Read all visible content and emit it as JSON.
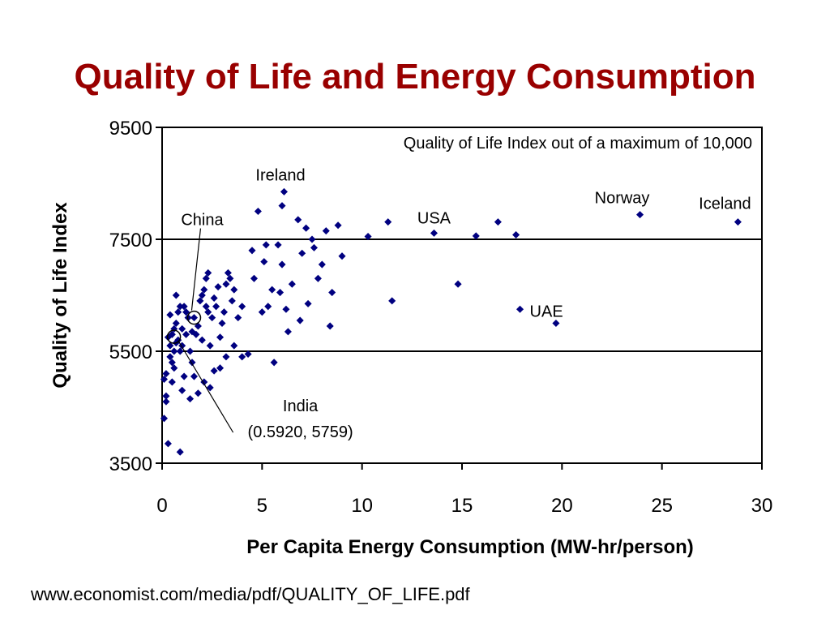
{
  "title": "Quality of Life and Energy Consumption",
  "source": "www.economist.com/media/pdf/QUALITY_OF_LIFE.pdf",
  "chart_data": {
    "type": "scatter",
    "xlabel": "Per Capita Energy Consumption (MW-hr/person)",
    "ylabel": "Quality of Life Index",
    "xlim": [
      0,
      30
    ],
    "ylim": [
      3500,
      9500
    ],
    "xticks": [
      "0",
      "5",
      "10",
      "15",
      "20",
      "25",
      "30"
    ],
    "yticks": [
      "3500",
      "5500",
      "7500",
      "9500"
    ],
    "grid": "horizontal lines at 5500 and 7500",
    "colors": {
      "marker": "#000080",
      "title": "#990000"
    },
    "note": "Quality of Life Index out of a maximum of 10,000",
    "annotations": [
      {
        "label": "Ireland",
        "x": 6.0,
        "y": 8350
      },
      {
        "label": "China",
        "x": 1.6,
        "y": 6100,
        "circled": true
      },
      {
        "label": "USA",
        "x": 13.6,
        "y": 7610
      },
      {
        "label": "Norway",
        "x": 23.9,
        "y": 7940
      },
      {
        "label": "Iceland",
        "x": 28.8,
        "y": 7810
      },
      {
        "label": "UAE",
        "x": 17.9,
        "y": 6200
      },
      {
        "label": "India",
        "sublabel": "(0.5920, 5759)",
        "x": 0.592,
        "y": 5759,
        "circled": true
      }
    ],
    "points": [
      [
        0.1,
        5000
      ],
      [
        0.1,
        4300
      ],
      [
        0.2,
        4600
      ],
      [
        0.2,
        4700
      ],
      [
        0.2,
        5100
      ],
      [
        0.3,
        5750
      ],
      [
        0.4,
        5600
      ],
      [
        0.4,
        5400
      ],
      [
        0.5,
        5800
      ],
      [
        0.5,
        5300
      ],
      [
        0.6,
        5900
      ],
      [
        0.6,
        5500
      ],
      [
        0.6,
        5200
      ],
      [
        0.7,
        6000
      ],
      [
        0.7,
        6500
      ],
      [
        0.7,
        5650
      ],
      [
        0.8,
        6200
      ],
      [
        0.8,
        5700
      ],
      [
        0.9,
        5500
      ],
      [
        0.9,
        6300
      ],
      [
        1.0,
        5900
      ],
      [
        1.0,
        5600
      ],
      [
        1.0,
        4800
      ],
      [
        1.1,
        6300
      ],
      [
        1.2,
        6200
      ],
      [
        1.2,
        5800
      ],
      [
        1.3,
        6100
      ],
      [
        1.4,
        5500
      ],
      [
        1.5,
        5850
      ],
      [
        1.5,
        5300
      ],
      [
        1.6,
        6100
      ],
      [
        1.7,
        5800
      ],
      [
        1.8,
        5950
      ],
      [
        1.9,
        6400
      ],
      [
        2.0,
        6500
      ],
      [
        2.0,
        5700
      ],
      [
        2.1,
        6600
      ],
      [
        2.2,
        6800
      ],
      [
        2.2,
        6300
      ],
      [
        2.3,
        6900
      ],
      [
        2.3,
        6200
      ],
      [
        2.4,
        5600
      ],
      [
        2.5,
        6100
      ],
      [
        2.6,
        6450
      ],
      [
        2.7,
        6300
      ],
      [
        2.8,
        6650
      ],
      [
        2.9,
        5750
      ],
      [
        3.0,
        6000
      ],
      [
        3.1,
        6200
      ],
      [
        3.2,
        6700
      ],
      [
        3.3,
        6900
      ],
      [
        3.4,
        6800
      ],
      [
        3.5,
        6400
      ],
      [
        3.6,
        5600
      ],
      [
        3.8,
        6100
      ],
      [
        4.0,
        5400
      ],
      [
        4.0,
        6300
      ],
      [
        4.3,
        5450
      ],
      [
        4.5,
        7300
      ],
      [
        4.8,
        8000
      ],
      [
        5.0,
        6200
      ],
      [
        5.1,
        7100
      ],
      [
        5.2,
        7400
      ],
      [
        5.3,
        6300
      ],
      [
        5.5,
        6600
      ],
      [
        5.6,
        5300
      ],
      [
        5.8,
        7400
      ],
      [
        6.0,
        7050
      ],
      [
        6.0,
        8100
      ],
      [
        6.1,
        8350
      ],
      [
        6.2,
        6250
      ],
      [
        6.3,
        5850
      ],
      [
        6.5,
        6700
      ],
      [
        6.8,
        7850
      ],
      [
        7.0,
        7250
      ],
      [
        7.2,
        7700
      ],
      [
        7.5,
        7500
      ],
      [
        7.6,
        7350
      ],
      [
        7.8,
        6800
      ],
      [
        8.0,
        7050
      ],
      [
        8.2,
        7650
      ],
      [
        8.4,
        5950
      ],
      [
        8.5,
        6550
      ],
      [
        8.8,
        7750
      ],
      [
        9.0,
        7200
      ],
      [
        10.3,
        7550
      ],
      [
        11.3,
        7810
      ],
      [
        11.5,
        6400
      ],
      [
        13.6,
        7610
      ],
      [
        14.8,
        6700
      ],
      [
        15.7,
        7560
      ],
      [
        16.8,
        7810
      ],
      [
        17.7,
        7580
      ],
      [
        17.9,
        6250
      ],
      [
        19.7,
        6000
      ],
      [
        23.9,
        7940
      ],
      [
        28.8,
        7810
      ],
      [
        3.2,
        5400
      ],
      [
        2.9,
        5200
      ],
      [
        2.4,
        4850
      ],
      [
        1.8,
        4750
      ],
      [
        1.4,
        4650
      ],
      [
        0.9,
        3700
      ],
      [
        0.3,
        3850
      ],
      [
        0.5,
        4950
      ],
      [
        1.1,
        5050
      ],
      [
        2.1,
        4950
      ],
      [
        3.6,
        6600
      ],
      [
        4.6,
        6800
      ],
      [
        5.9,
        6550
      ],
      [
        6.9,
        6050
      ],
      [
        7.3,
        6350
      ],
      [
        1.6,
        5050
      ],
      [
        2.6,
        5150
      ],
      [
        0.4,
        6150
      ]
    ]
  }
}
